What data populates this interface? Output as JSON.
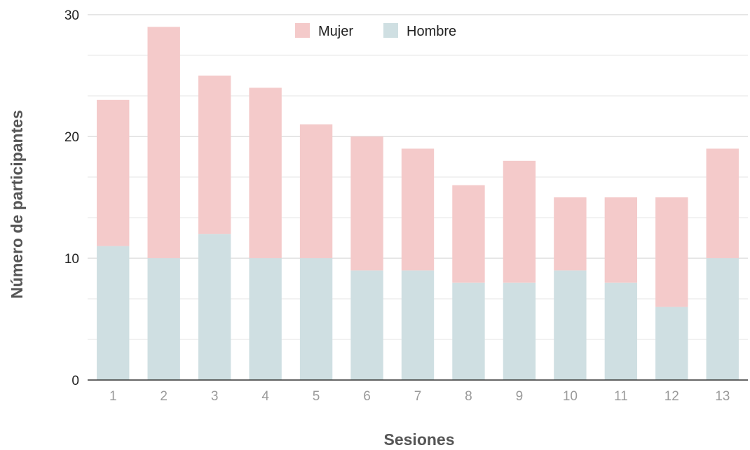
{
  "chart_data": {
    "type": "bar",
    "stacked": true,
    "title": "",
    "xlabel": "Sesiones",
    "ylabel": "Número de participantes",
    "ylim": [
      0,
      30
    ],
    "yticks": [
      0,
      10,
      20,
      30
    ],
    "grid": true,
    "legend_position": "top-center",
    "categories": [
      "1",
      "2",
      "3",
      "4",
      "5",
      "6",
      "7",
      "8",
      "9",
      "10",
      "11",
      "12",
      "13"
    ],
    "series": [
      {
        "name": "Hombre",
        "color": "#cfdfe2",
        "values": [
          11,
          10,
          12,
          10,
          10,
          9,
          9,
          8,
          8,
          9,
          8,
          6,
          10
        ]
      },
      {
        "name": "Mujer",
        "color": "#f4caca",
        "values": [
          12,
          19,
          13,
          14,
          11,
          11,
          10,
          8,
          10,
          6,
          7,
          9,
          9
        ]
      }
    ],
    "legend_order": [
      "Mujer",
      "Hombre"
    ]
  }
}
